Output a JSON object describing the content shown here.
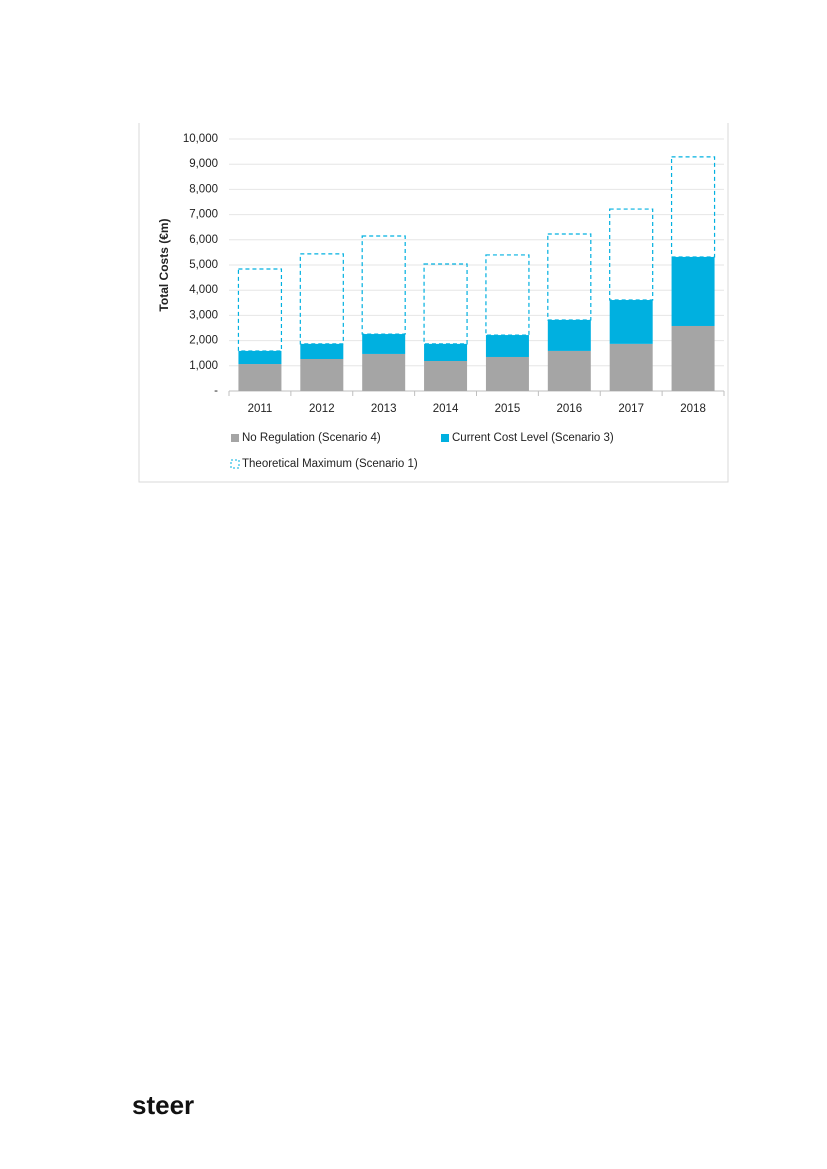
{
  "chart_data": {
    "type": "stacked_bar",
    "y_label": "Total Costs (€m)",
    "categories": [
      "2011",
      "2012",
      "2013",
      "2014",
      "2015",
      "2016",
      "2017",
      "2018"
    ],
    "series": [
      {
        "name": "No Regulation (Scenario 4)",
        "color": "#a5a5a5",
        "style": "solid",
        "values": [
          1070,
          1270,
          1470,
          1190,
          1350,
          1590,
          1870,
          2580
        ]
      },
      {
        "name": "Current Cost Level (Scenario 3)",
        "color": "#00b0e0",
        "style": "solid",
        "values": [
          520,
          600,
          790,
          680,
          870,
          1230,
          1740,
          2740
        ]
      },
      {
        "name": "Theoretical Maximum (Scenario 1)",
        "color": "#00b0e0",
        "style": "dashed",
        "values": [
          3250,
          3570,
          3890,
          3170,
          3180,
          3410,
          3610,
          3970
        ]
      }
    ],
    "ylim": [
      0,
      10000
    ],
    "yticks": [
      {
        "value": 0,
        "label": "-"
      },
      {
        "value": 1000,
        "label": "1,000"
      },
      {
        "value": 2000,
        "label": "2,000"
      },
      {
        "value": 3000,
        "label": "3,000"
      },
      {
        "value": 4000,
        "label": "4,000"
      },
      {
        "value": 5000,
        "label": "5,000"
      },
      {
        "value": 6000,
        "label": "6,000"
      },
      {
        "value": 7000,
        "label": "7,000"
      },
      {
        "value": 8000,
        "label": "8,000"
      },
      {
        "value": 9000,
        "label": "9,000"
      },
      {
        "value": 10000,
        "label": "10,000"
      }
    ],
    "grid": true
  },
  "footer": {
    "logo": "steer"
  }
}
